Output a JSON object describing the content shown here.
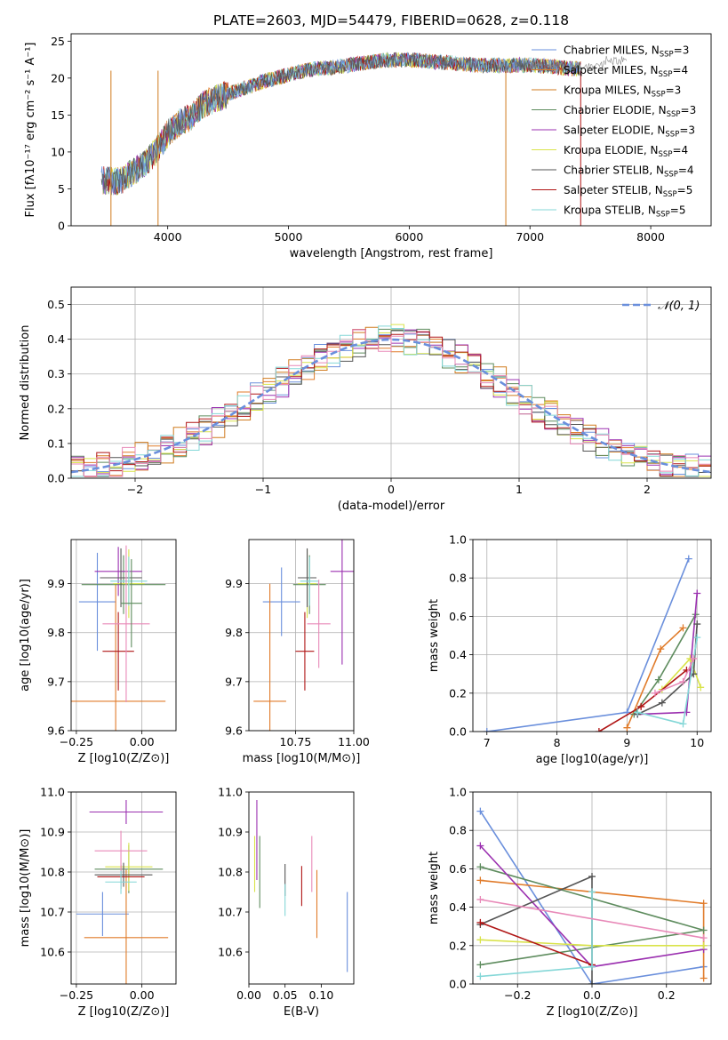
{
  "title": "PLATE=2603, MJD=54479, FIBERID=0628, z=0.118",
  "colors": [
    "#6a8fdc",
    "#e07b2a",
    "#d07b1f",
    "#5e8c5e",
    "#9b30b0",
    "#d9e34a",
    "#555555",
    "#b01515",
    "#84d7d7",
    "#e889b8"
  ],
  "chart_data": [
    {
      "type": "line",
      "id": "spectrum",
      "xlabel": "wavelength [Angstrom, rest frame]",
      "ylabel": "Flux [fλ10⁻¹⁷ erg cm⁻² s⁻¹ A⁻¹]",
      "xlim": [
        3200,
        8500
      ],
      "ylim": [
        0,
        26
      ],
      "xticks": [
        4000,
        5000,
        6000,
        7000,
        8000
      ],
      "yticks": [
        0,
        5,
        10,
        15,
        20,
        25
      ],
      "continuum_x": [
        3450,
        3600,
        3700,
        3800,
        3900,
        4000,
        4100,
        4200,
        4300,
        4400,
        4500,
        4600,
        4700,
        4800,
        4900,
        5000,
        5200,
        5400,
        5600,
        5800,
        6000,
        6200,
        6400,
        6600,
        6800,
        7000,
        7200,
        7400
      ],
      "continuum_y": [
        6.2,
        6.0,
        7.2,
        8.3,
        10.0,
        12.5,
        14.0,
        14.8,
        16.5,
        17.2,
        17.8,
        18.5,
        19.0,
        19.6,
        20.0,
        20.5,
        21.2,
        21.5,
        22.0,
        22.4,
        22.5,
        22.2,
        22.0,
        21.7,
        21.7,
        21.8,
        21.5,
        21.2
      ],
      "legend": [
        {
          "label": "Chabrier MILES, N",
          "sub": "SSP",
          "suffix": "=3",
          "color": "#6a8fdc"
        },
        {
          "label": "Salpeter MILES, N",
          "sub": "SSP",
          "suffix": "=4",
          "color": "#e07b2a"
        },
        {
          "label": "Kroupa MILES, N",
          "sub": "SSP",
          "suffix": "=3",
          "color": "#d07b1f"
        },
        {
          "label": "Chabrier ELODIE, N",
          "sub": "SSP",
          "suffix": "=3",
          "color": "#5e8c5e"
        },
        {
          "label": "Salpeter ELODIE, N",
          "sub": "SSP",
          "suffix": "=3",
          "color": "#9b30b0"
        },
        {
          "label": "Kroupa ELODIE, N",
          "sub": "SSP",
          "suffix": "=4",
          "color": "#d9e34a"
        },
        {
          "label": "Chabrier STELIB, N",
          "sub": "SSP",
          "suffix": "=4",
          "color": "#555555"
        },
        {
          "label": "Salpeter STELIB, N",
          "sub": "SSP",
          "suffix": "=5",
          "color": "#b01515"
        },
        {
          "label": "Kroupa STELIB, N",
          "sub": "SSP",
          "suffix": "=5",
          "color": "#84d7d7"
        }
      ]
    },
    {
      "type": "histogram",
      "id": "residuals",
      "xlabel": "(data-model)/error",
      "ylabel": "Normed distribution",
      "xlim": [
        -2.5,
        2.5
      ],
      "ylim": [
        0,
        0.55
      ],
      "xticks": [
        -2,
        -1,
        0,
        1,
        2
      ],
      "yticks": [
        0.0,
        0.1,
        0.2,
        0.3,
        0.4,
        0.5
      ],
      "grid": true,
      "bin_width": 0.1,
      "legend": "𝒩(0, 1)",
      "normal_curve": true
    },
    {
      "type": "errorbar",
      "id": "age_vs_Z",
      "xlabel": "Z [log10(Z/Z⊙)]",
      "ylabel": "age  [log10(age/yr)]",
      "xlim": [
        -0.27,
        0.13
      ],
      "ylim": [
        9.6,
        9.99
      ],
      "xticks": [
        -0.25,
        0.0
      ],
      "yticks": [
        9.6,
        9.7,
        9.8,
        9.9
      ],
      "grid": true,
      "points": [
        {
          "x": -0.17,
          "xerr": 0.07,
          "y": 9.863,
          "yerr": 0.1,
          "color": "#6a8fdc"
        },
        {
          "x": -0.1,
          "xerr": 0.19,
          "y": 9.66,
          "yerr": 0.24,
          "color": "#e07b2a"
        },
        {
          "x": -0.07,
          "xerr": 0.16,
          "y": 9.898,
          "yerr": 0.06,
          "color": "#5e8c5e"
        },
        {
          "x": -0.09,
          "xerr": 0.09,
          "y": 9.925,
          "yerr": 0.05,
          "color": "#9b30b0"
        },
        {
          "x": -0.05,
          "xerr": 0.06,
          "y": 9.9,
          "yerr": 0.07,
          "color": "#d9e34a"
        },
        {
          "x": -0.08,
          "xerr": 0.08,
          "y": 9.912,
          "yerr": 0.06,
          "color": "#555555"
        },
        {
          "x": -0.09,
          "xerr": 0.06,
          "y": 9.762,
          "yerr": 0.08,
          "color": "#b01515"
        },
        {
          "x": -0.05,
          "xerr": 0.07,
          "y": 9.905,
          "yerr": 0.05,
          "color": "#84d7d7"
        },
        {
          "x": -0.06,
          "xerr": 0.09,
          "y": 9.818,
          "yerr": 0.16,
          "color": "#e889b8"
        },
        {
          "x": -0.04,
          "xerr": 0.04,
          "y": 9.86,
          "yerr": 0.09,
          "color": "#5e8c5e"
        }
      ]
    },
    {
      "type": "errorbar",
      "id": "age_vs_mass",
      "xlabel": "mass [log10(M/M⊙)]",
      "ylabel": "",
      "xlim": [
        10.55,
        11.0
      ],
      "ylim": [
        9.6,
        9.99
      ],
      "xticks": [
        10.75,
        11.0
      ],
      "yticks": [
        9.6,
        9.7,
        9.8,
        9.9
      ],
      "grid": true,
      "points": [
        {
          "x": 10.69,
          "xerr": 0.08,
          "y": 9.863,
          "yerr": 0.07,
          "color": "#6a8fdc"
        },
        {
          "x": 10.64,
          "xerr": 0.07,
          "y": 9.66,
          "yerr": 0.24,
          "color": "#e07b2a"
        },
        {
          "x": 10.81,
          "xerr": 0.07,
          "y": 9.898,
          "yerr": 0.06,
          "color": "#5e8c5e"
        },
        {
          "x": 10.95,
          "xerr": 0.05,
          "y": 9.925,
          "yerr": 0.19,
          "color": "#9b30b0"
        },
        {
          "x": 10.8,
          "xerr": 0.04,
          "y": 9.9,
          "yerr": 0.07,
          "color": "#d9e34a"
        },
        {
          "x": 10.8,
          "xerr": 0.04,
          "y": 9.912,
          "yerr": 0.06,
          "color": "#555555"
        },
        {
          "x": 10.79,
          "xerr": 0.04,
          "y": 9.762,
          "yerr": 0.08,
          "color": "#b01515"
        },
        {
          "x": 10.81,
          "xerr": 0.04,
          "y": 9.905,
          "yerr": 0.05,
          "color": "#84d7d7"
        },
        {
          "x": 10.85,
          "xerr": 0.05,
          "y": 9.818,
          "yerr": 0.09,
          "color": "#e889b8"
        }
      ]
    },
    {
      "type": "line",
      "id": "mass_weight_vs_age",
      "xlabel": "age  [log10(age/yr)]",
      "ylabel": "mass weight",
      "xlim": [
        6.8,
        10.2
      ],
      "ylim": [
        0,
        1.0
      ],
      "xticks": [
        7,
        8,
        9,
        10
      ],
      "yticks": [
        0.0,
        0.2,
        0.4,
        0.6,
        0.8,
        1.0
      ],
      "grid": true,
      "series": [
        {
          "color": "#6a8fdc",
          "x": [
            7.0,
            9.0,
            9.88
          ],
          "y": [
            0.0,
            0.1,
            0.9
          ]
        },
        {
          "color": "#e07b2a",
          "x": [
            9.0,
            9.48,
            9.8
          ],
          "y": [
            0.02,
            0.43,
            0.54
          ]
        },
        {
          "color": "#5e8c5e",
          "x": [
            9.1,
            9.45,
            9.98
          ],
          "y": [
            0.09,
            0.27,
            0.61
          ]
        },
        {
          "color": "#9b30b0",
          "x": [
            9.15,
            9.85,
            10.0
          ],
          "y": [
            0.09,
            0.1,
            0.72
          ]
        },
        {
          "color": "#d9e34a",
          "x": [
            9.5,
            9.9,
            10.05
          ],
          "y": [
            0.22,
            0.38,
            0.23
          ]
        },
        {
          "color": "#555555",
          "x": [
            9.15,
            9.5,
            9.95,
            10.0
          ],
          "y": [
            0.09,
            0.15,
            0.3,
            0.56
          ]
        },
        {
          "color": "#b01515",
          "x": [
            8.6,
            9.2,
            9.85
          ],
          "y": [
            0.0,
            0.13,
            0.32
          ]
        },
        {
          "color": "#84d7d7",
          "x": [
            9.15,
            9.8,
            10.0
          ],
          "y": [
            0.1,
            0.04,
            0.49
          ]
        },
        {
          "color": "#e889b8",
          "x": [
            9.4,
            9.8,
            9.95
          ],
          "y": [
            0.2,
            0.26,
            0.38
          ]
        }
      ]
    },
    {
      "type": "errorbar",
      "id": "mass_vs_Z",
      "xlabel": "Z [log10(Z/Z⊙)]",
      "ylabel": "mass [log10(M/M⊙)]",
      "xlim": [
        -0.27,
        0.13
      ],
      "ylim": [
        10.52,
        11.0
      ],
      "xticks": [
        -0.25,
        0.0
      ],
      "yticks": [
        10.6,
        10.7,
        10.8,
        10.9,
        11.0
      ],
      "grid": true,
      "points": [
        {
          "x": -0.15,
          "xerr": 0.1,
          "y": 10.695,
          "yerr": 0.055,
          "color": "#6a8fdc"
        },
        {
          "x": -0.06,
          "xerr": 0.16,
          "y": 10.636,
          "yerr": 0.17,
          "color": "#e07b2a"
        },
        {
          "x": -0.05,
          "xerr": 0.13,
          "y": 10.807,
          "yerr": 0.06,
          "color": "#5e8c5e"
        },
        {
          "x": -0.06,
          "xerr": 0.14,
          "y": 10.95,
          "yerr": 0.03,
          "color": "#9b30b0"
        },
        {
          "x": -0.05,
          "xerr": 0.09,
          "y": 10.813,
          "yerr": 0.06,
          "color": "#d9e34a"
        },
        {
          "x": -0.07,
          "xerr": 0.11,
          "y": 10.793,
          "yerr": 0.03,
          "color": "#555555"
        },
        {
          "x": -0.08,
          "xerr": 0.09,
          "y": 10.788,
          "yerr": 0.03,
          "color": "#b01515"
        },
        {
          "x": -0.08,
          "xerr": 0.06,
          "y": 10.775,
          "yerr": 0.03,
          "color": "#84d7d7"
        },
        {
          "x": -0.08,
          "xerr": 0.1,
          "y": 10.853,
          "yerr": 0.05,
          "color": "#e889b8"
        }
      ]
    },
    {
      "type": "errorbar",
      "id": "mass_vs_EBV",
      "xlabel": "E(B-V)",
      "ylabel": "",
      "xlim": [
        0.0,
        0.145
      ],
      "ylim": [
        10.52,
        11.0
      ],
      "xticks": [
        0.0,
        0.05,
        0.1
      ],
      "yticks": [
        10.6,
        10.7,
        10.8,
        10.9,
        11.0
      ],
      "grid": false,
      "points": [
        {
          "x": 0.136,
          "y": 10.65,
          "yerr": 0.1,
          "color": "#6a8fdc"
        },
        {
          "x": 0.094,
          "y": 10.72,
          "yerr": 0.085,
          "color": "#e07b2a"
        },
        {
          "x": 0.015,
          "y": 10.8,
          "yerr": 0.09,
          "color": "#5e8c5e"
        },
        {
          "x": 0.011,
          "y": 10.88,
          "yerr": 0.1,
          "color": "#9b30b0"
        },
        {
          "x": 0.008,
          "y": 10.82,
          "yerr": 0.07,
          "color": "#d9e34a"
        },
        {
          "x": 0.05,
          "y": 10.78,
          "yerr": 0.04,
          "color": "#555555"
        },
        {
          "x": 0.073,
          "y": 10.765,
          "yerr": 0.05,
          "color": "#b01515"
        },
        {
          "x": 0.05,
          "y": 10.73,
          "yerr": 0.04,
          "color": "#84d7d7"
        },
        {
          "x": 0.087,
          "y": 10.82,
          "yerr": 0.07,
          "color": "#e889b8"
        }
      ]
    },
    {
      "type": "line",
      "id": "mass_weight_vs_Z",
      "xlabel": "Z [log10(Z/Z⊙)]",
      "ylabel": "mass weight",
      "xlim": [
        -0.32,
        0.32
      ],
      "ylim": [
        0,
        1.0
      ],
      "xticks": [
        -0.2,
        0.0,
        0.2
      ],
      "yticks": [
        0.0,
        0.2,
        0.4,
        0.6,
        0.8,
        1.0
      ],
      "grid": true,
      "series": [
        {
          "color": "#6a8fdc",
          "x": [
            -0.3,
            0.0,
            0.3
          ],
          "y": [
            0.9,
            0.0,
            0.09
          ]
        },
        {
          "color": "#e07b2a",
          "x": [
            -0.3,
            0.3,
            0.3
          ],
          "y": [
            0.54,
            0.42,
            0.03
          ]
        },
        {
          "color": "#5e8c5e",
          "x": [
            -0.3,
            0.3,
            -0.3
          ],
          "y": [
            0.1,
            0.28,
            0.61
          ]
        },
        {
          "color": "#9b30b0",
          "x": [
            -0.3,
            0.0,
            0.3
          ],
          "y": [
            0.72,
            0.09,
            0.18
          ]
        },
        {
          "color": "#d9e34a",
          "x": [
            -0.3,
            0.0,
            0.3
          ],
          "y": [
            0.23,
            0.2,
            0.2
          ]
        },
        {
          "color": "#555555",
          "x": [
            -0.3,
            0.0,
            0.0
          ],
          "y": [
            0.31,
            0.56,
            0.0
          ]
        },
        {
          "color": "#b01515",
          "x": [
            -0.3,
            0.0
          ],
          "y": [
            0.32,
            0.1
          ]
        },
        {
          "color": "#84d7d7",
          "x": [
            -0.3,
            0.0,
            0.0
          ],
          "y": [
            0.04,
            0.09,
            0.48
          ]
        },
        {
          "color": "#e889b8",
          "x": [
            -0.3,
            0.3
          ],
          "y": [
            0.44,
            0.24
          ]
        }
      ]
    }
  ]
}
